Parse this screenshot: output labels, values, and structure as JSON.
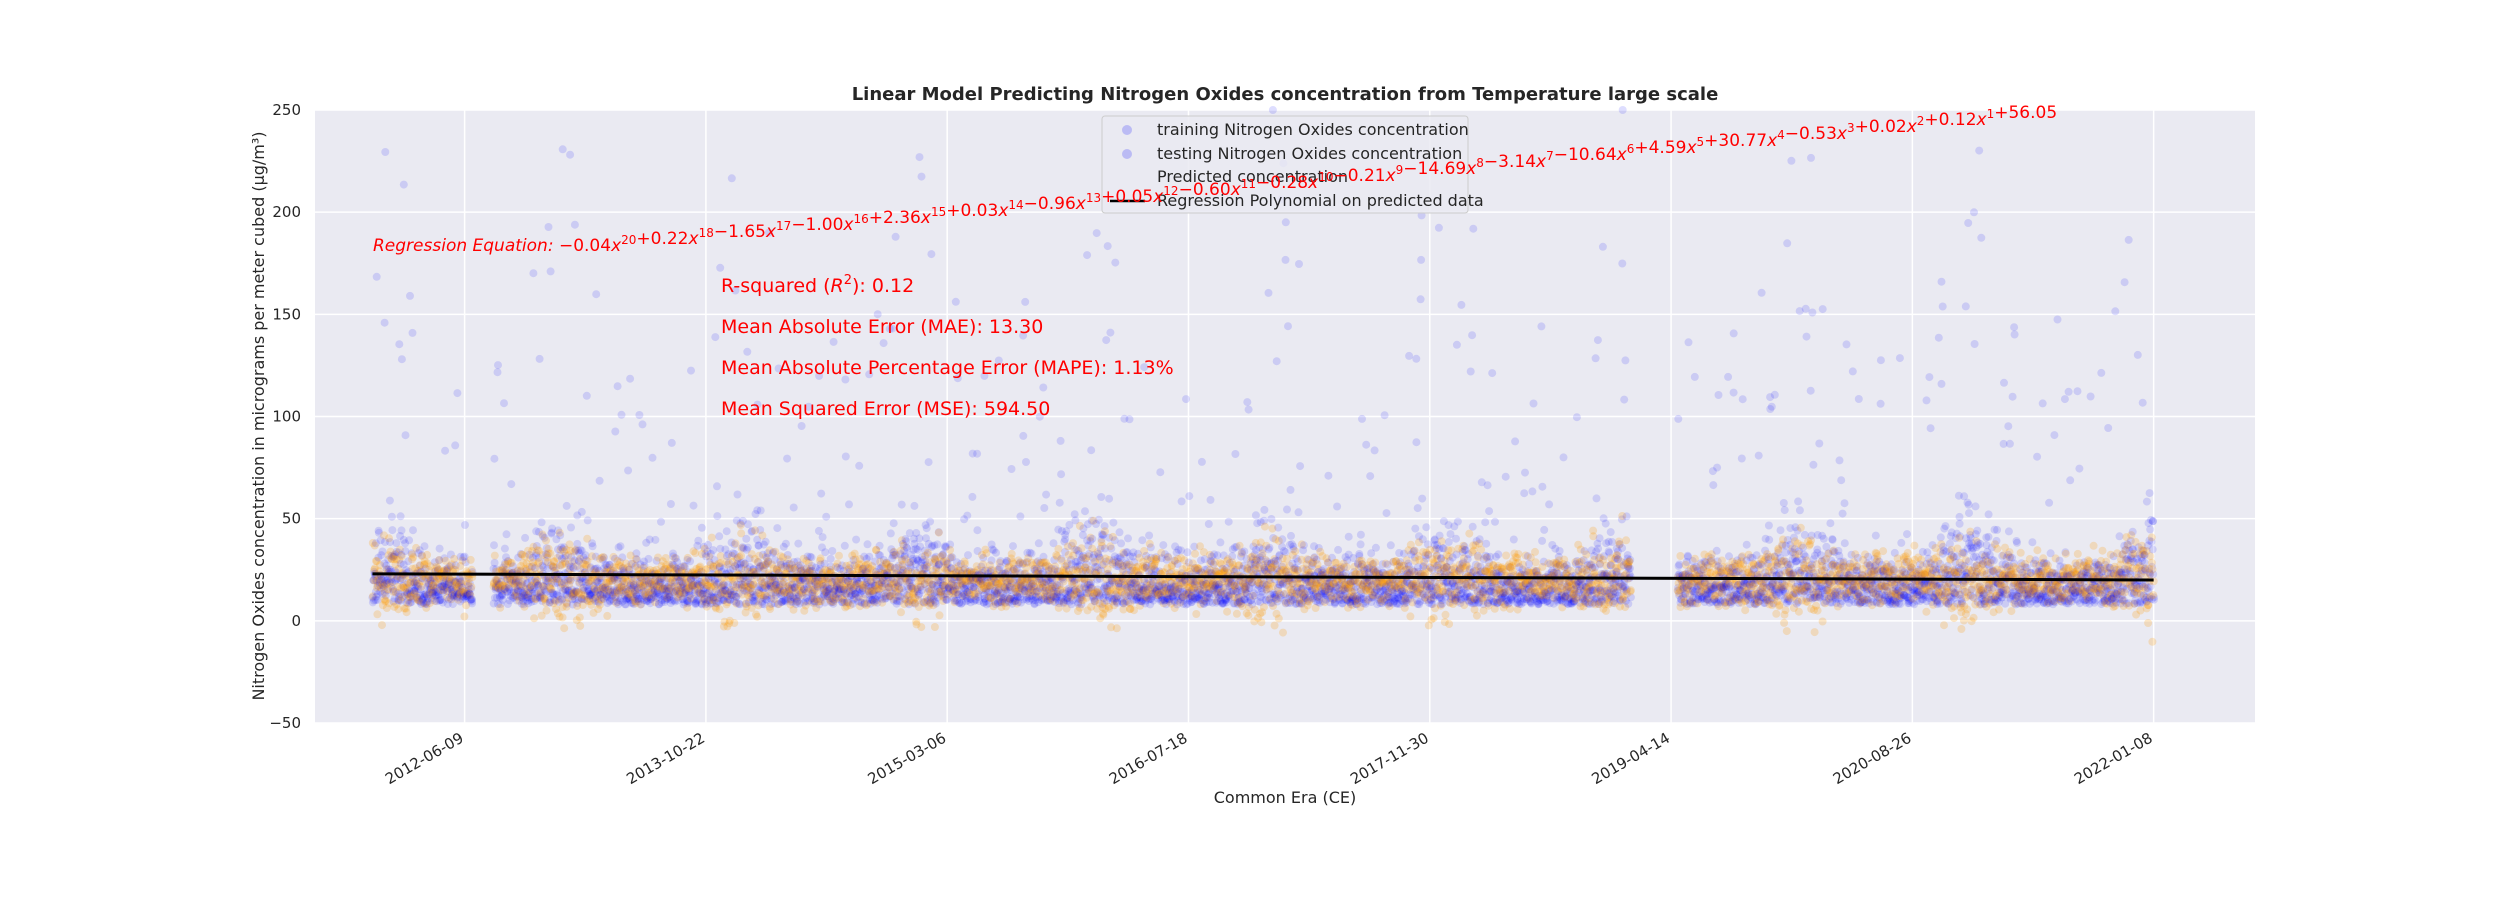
{
  "chart_data": {
    "type": "scatter",
    "title": "Linear Model Predicting Nitrogen Oxides concentration from Temperature large scale",
    "xlabel": "Common Era (CE)",
    "ylabel": "Nitrogen Oxides concentration in micrograms per meter cubed (µg/m³)",
    "ylim": [
      -50,
      250
    ],
    "xlim": [
      "2011-08-04",
      "2022-08-06"
    ],
    "y_ticks": [
      "−50",
      "0",
      "50",
      "100",
      "150",
      "200",
      "250"
    ],
    "x_ticks": [
      "2012-06-09",
      "2013-10-22",
      "2015-03-06",
      "2016-07-18",
      "2017-11-30",
      "2019-04-14",
      "2020-08-26",
      "2022-01-08"
    ],
    "grid": true,
    "legend_position": "top-center",
    "data_gaps": [
      [
        "2012-06-25",
        "2012-08-05"
      ],
      [
        "2019-01-20",
        "2019-04-25"
      ]
    ],
    "data_range": [
      "2011-12-01",
      "2022-01-08"
    ],
    "series": [
      {
        "name": "training Nitrogen Oxides concentration",
        "kind": "scatter",
        "color": "#0000ff",
        "typical_range": [
          0,
          60
        ],
        "max": 250
      },
      {
        "name": "testing Nitrogen Oxides concentration",
        "kind": "scatter",
        "color": "#0000ff",
        "typical_range": [
          0,
          60
        ],
        "max": 250
      },
      {
        "name": "Predicted concentration",
        "kind": "scatter",
        "color": "#ff9900",
        "typical_range": [
          -10,
          50
        ]
      },
      {
        "name": "Regression Polynomial on predicted data",
        "kind": "line",
        "color": "#000000",
        "x": [
          "2011-12-01",
          "2022-01-08"
        ],
        "y": [
          23,
          20
        ]
      }
    ],
    "annotations": {
      "equation_label": "Regression Equation",
      "equation_terms": [
        {
          "c": "−0.04",
          "p": "20"
        },
        {
          "c": "+0.22",
          "p": "18"
        },
        {
          "c": "−1.65",
          "p": "17"
        },
        {
          "c": "−1.00",
          "p": "16"
        },
        {
          "c": "+2.36",
          "p": "15"
        },
        {
          "c": "+0.03",
          "p": "14"
        },
        {
          "c": "−0.96",
          "p": "13"
        },
        {
          "c": "+0.05",
          "p": "12"
        },
        {
          "c": "−0.60",
          "p": "11"
        },
        {
          "c": "−0.28",
          "p": "10"
        },
        {
          "c": "−0.21",
          "p": "9"
        },
        {
          "c": "−14.69",
          "p": "8"
        },
        {
          "c": "−3.14",
          "p": "7"
        },
        {
          "c": "−10.64",
          "p": "6"
        },
        {
          "c": "+4.59",
          "p": "5"
        },
        {
          "c": "+30.77",
          "p": "4"
        },
        {
          "c": "−0.53",
          "p": "3"
        },
        {
          "c": "+0.02",
          "p": "2"
        },
        {
          "c": "+0.12",
          "p": "1"
        }
      ],
      "equation_constant": "+56.05",
      "r_squared_prefix": "R-squared (",
      "r_squared_symbol": "R",
      "r_squared_sup": "2",
      "r_squared_suffix": "): 0.12",
      "mae": "Mean Absolute Error (MAE): 13.30",
      "mape": "Mean Absolute Percentage Error (MAPE): 1.13%",
      "mse": "Mean Squared Error (MSE): 594.50"
    }
  }
}
